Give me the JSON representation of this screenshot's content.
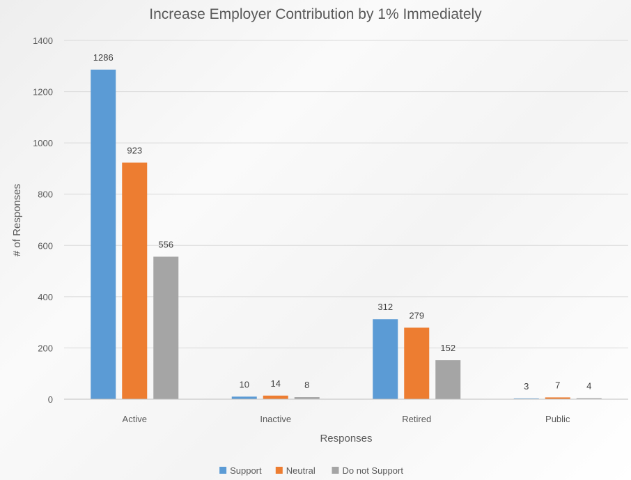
{
  "chart_data": {
    "type": "bar",
    "title": "Increase Employer Contribution by 1% Immediately",
    "xlabel": "Responses",
    "ylabel": "# of Responses",
    "categories": [
      "Active",
      "Inactive",
      "Retired",
      "Public"
    ],
    "series": [
      {
        "name": "Support",
        "values": [
          1286,
          10,
          312,
          3
        ],
        "color": "#5B9BD5"
      },
      {
        "name": "Neutral",
        "values": [
          923,
          14,
          279,
          7
        ],
        "color": "#ED7D31"
      },
      {
        "name": "Do not Support",
        "values": [
          556,
          8,
          152,
          4
        ],
        "color": "#A5A5A5"
      }
    ],
    "ylim": [
      0,
      1400
    ],
    "yticks": [
      0,
      200,
      400,
      600,
      800,
      1000,
      1200,
      1400
    ],
    "grid": true,
    "legend": "bottom",
    "gridline_color": "#D9D9D9",
    "axis_color": "#BFBFBF"
  }
}
